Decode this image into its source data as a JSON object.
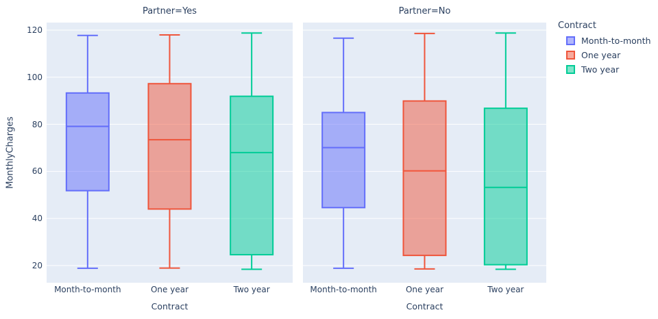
{
  "figure": {
    "background": "#ffffff",
    "panel_background": "#e5ecf6",
    "grid_color": "#ffffff",
    "text_color": "#2a3f5f"
  },
  "chart_data": {
    "type": "box",
    "ylabel": "MonthlyCharges",
    "xlabel": "Contract",
    "categories": [
      "Month-to-month",
      "One year",
      "Two year"
    ],
    "yticks": [
      20,
      40,
      60,
      80,
      100,
      120
    ],
    "ylim": [
      12.7,
      123.2
    ],
    "grid": true,
    "legend": {
      "title": "Contract",
      "position": "top-right",
      "entries": [
        {
          "label": "Month-to-month",
          "color": "#636efa"
        },
        {
          "label": "One year",
          "color": "#ef553b"
        },
        {
          "label": "Two year",
          "color": "#00cc96"
        }
      ]
    },
    "facets": [
      {
        "title": "Partner=Yes",
        "boxes": [
          {
            "category": "Month-to-month",
            "series": "Month-to-month",
            "color": "#636efa",
            "min": 18.85,
            "q1": 51.8,
            "median": 79.1,
            "q3": 93.3,
            "max": 117.75
          },
          {
            "category": "One year",
            "series": "One year",
            "color": "#ef553b",
            "min": 18.9,
            "q1": 44.0,
            "median": 73.45,
            "q3": 97.25,
            "max": 117.95
          },
          {
            "category": "Two year",
            "series": "Two year",
            "color": "#00cc96",
            "min": 18.4,
            "q1": 24.6,
            "median": 68.0,
            "q3": 91.9,
            "max": 118.75
          }
        ]
      },
      {
        "title": "Partner=No",
        "boxes": [
          {
            "category": "Month-to-month",
            "series": "Month-to-month",
            "color": "#636efa",
            "min": 18.85,
            "q1": 44.6,
            "median": 70.1,
            "q3": 85.0,
            "max": 116.6
          },
          {
            "category": "One year",
            "series": "One year",
            "color": "#ef553b",
            "min": 18.55,
            "q1": 24.3,
            "median": 60.2,
            "q3": 89.9,
            "max": 118.6
          },
          {
            "category": "Two year",
            "series": "Two year",
            "color": "#00cc96",
            "min": 18.4,
            "q1": 20.35,
            "median": 53.2,
            "q3": 86.8,
            "max": 118.75
          }
        ]
      }
    ]
  }
}
